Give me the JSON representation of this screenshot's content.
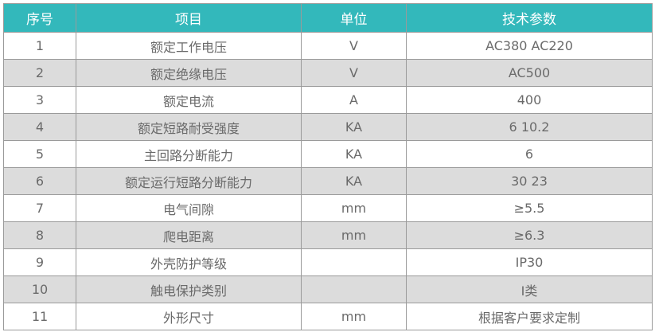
{
  "colors": {
    "header_bg": "#33b8bb",
    "alt_row_bg": "#dcdcdc",
    "text": "#6a6a6a"
  },
  "headers": [
    "序号",
    "项目",
    "单位",
    "技术参数"
  ],
  "rows": [
    [
      "1",
      "额定工作电压",
      "V",
      "AC380  AC220"
    ],
    [
      "2",
      "额定绝缘电压",
      "V",
      "AC500"
    ],
    [
      "3",
      "额定电流",
      "A",
      "400"
    ],
    [
      "4",
      "额定短路耐受强度",
      "KA",
      "6  10.2"
    ],
    [
      "5",
      "主回路分断能力",
      "KA",
      "6"
    ],
    [
      "6",
      "额定运行短路分断能力",
      "KA",
      "30   23"
    ],
    [
      "7",
      "电气间隙",
      "mm",
      "≥5.5"
    ],
    [
      "8",
      "爬电距离",
      "mm",
      "≥6.3"
    ],
    [
      "9",
      "外壳防护等级",
      "",
      "IP30"
    ],
    [
      "10",
      "触电保护类别",
      "",
      "I类"
    ],
    [
      "11",
      "外形尺寸",
      "mm",
      "根据客户要求定制"
    ]
  ]
}
